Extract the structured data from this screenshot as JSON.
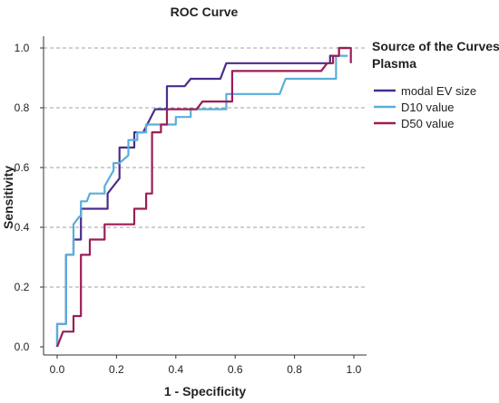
{
  "chart_data": {
    "type": "line",
    "title": "ROC Curve",
    "xlabel": "1 - Specificity",
    "ylabel": "Sensitivity",
    "xlim": [
      0,
      1
    ],
    "ylim": [
      0,
      1
    ],
    "xticks": [
      "0.0",
      "0.2",
      "0.4",
      "0.6",
      "0.8",
      "1.0"
    ],
    "yticks": [
      "0.0",
      "0.2",
      "0.4",
      "0.6",
      "0.8",
      "1.0"
    ],
    "grid": "horizontal dashed",
    "legend": {
      "placement": "right",
      "title_line1": "Source of the Curves",
      "title_line2": "Plasma"
    },
    "series": [
      {
        "name": "modal EV size",
        "color": "#4a2d8c",
        "points": [
          [
            0,
            0
          ],
          [
            0,
            0.077
          ],
          [
            0.03,
            0.077
          ],
          [
            0.03,
            0.308
          ],
          [
            0.055,
            0.308
          ],
          [
            0.055,
            0.359
          ],
          [
            0.08,
            0.359
          ],
          [
            0.08,
            0.462
          ],
          [
            0.17,
            0.462
          ],
          [
            0.17,
            0.513
          ],
          [
            0.21,
            0.564
          ],
          [
            0.21,
            0.667
          ],
          [
            0.26,
            0.667
          ],
          [
            0.26,
            0.718
          ],
          [
            0.29,
            0.718
          ],
          [
            0.33,
            0.795
          ],
          [
            0.37,
            0.795
          ],
          [
            0.37,
            0.872
          ],
          [
            0.43,
            0.872
          ],
          [
            0.45,
            0.897
          ],
          [
            0.55,
            0.897
          ],
          [
            0.57,
            0.949
          ],
          [
            0.87,
            0.949
          ],
          [
            0.92,
            0.949
          ],
          [
            0.92,
            0.974
          ],
          [
            0.95,
            0.974
          ],
          [
            0.95,
            1.0
          ],
          [
            0.98,
            1.0
          ]
        ]
      },
      {
        "name": "D10 value",
        "color": "#5aaedc",
        "points": [
          [
            0,
            0
          ],
          [
            0,
            0.077
          ],
          [
            0.03,
            0.077
          ],
          [
            0.03,
            0.308
          ],
          [
            0.055,
            0.308
          ],
          [
            0.055,
            0.41
          ],
          [
            0.075,
            0.436
          ],
          [
            0.08,
            0.436
          ],
          [
            0.08,
            0.487
          ],
          [
            0.1,
            0.487
          ],
          [
            0.11,
            0.513
          ],
          [
            0.16,
            0.513
          ],
          [
            0.16,
            0.538
          ],
          [
            0.19,
            0.59
          ],
          [
            0.19,
            0.615
          ],
          [
            0.21,
            0.615
          ],
          [
            0.24,
            0.641
          ],
          [
            0.24,
            0.692
          ],
          [
            0.27,
            0.692
          ],
          [
            0.27,
            0.718
          ],
          [
            0.3,
            0.718
          ],
          [
            0.3,
            0.744
          ],
          [
            0.4,
            0.744
          ],
          [
            0.4,
            0.769
          ],
          [
            0.45,
            0.769
          ],
          [
            0.45,
            0.795
          ],
          [
            0.57,
            0.795
          ],
          [
            0.57,
            0.846
          ],
          [
            0.75,
            0.846
          ],
          [
            0.77,
            0.897
          ],
          [
            0.94,
            0.897
          ],
          [
            0.94,
            0.974
          ],
          [
            0.98,
            0.974
          ]
        ]
      },
      {
        "name": "D50 value",
        "color": "#9c1d56",
        "points": [
          [
            0,
            0
          ],
          [
            0.02,
            0.051
          ],
          [
            0.055,
            0.051
          ],
          [
            0.055,
            0.103
          ],
          [
            0.08,
            0.103
          ],
          [
            0.08,
            0.308
          ],
          [
            0.11,
            0.308
          ],
          [
            0.11,
            0.359
          ],
          [
            0.16,
            0.359
          ],
          [
            0.16,
            0.41
          ],
          [
            0.26,
            0.41
          ],
          [
            0.26,
            0.462
          ],
          [
            0.3,
            0.462
          ],
          [
            0.3,
            0.513
          ],
          [
            0.32,
            0.513
          ],
          [
            0.32,
            0.718
          ],
          [
            0.35,
            0.718
          ],
          [
            0.35,
            0.744
          ],
          [
            0.37,
            0.744
          ],
          [
            0.37,
            0.795
          ],
          [
            0.47,
            0.795
          ],
          [
            0.49,
            0.821
          ],
          [
            0.59,
            0.821
          ],
          [
            0.59,
            0.923
          ],
          [
            0.89,
            0.923
          ],
          [
            0.91,
            0.949
          ],
          [
            0.93,
            0.949
          ],
          [
            0.93,
            0.974
          ],
          [
            0.95,
            0.974
          ],
          [
            0.95,
            1.0
          ],
          [
            0.99,
            1.0
          ],
          [
            0.99,
            0.949
          ]
        ]
      }
    ]
  }
}
